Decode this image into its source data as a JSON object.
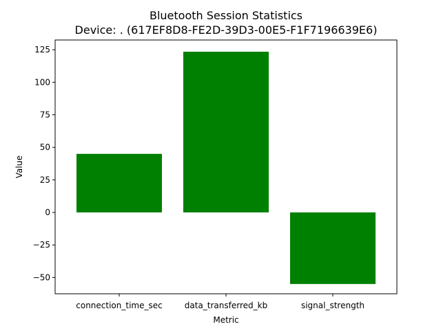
{
  "chart_data": {
    "type": "bar",
    "title": "Bluetooth Session Statistics",
    "subtitle": "Device: . (617EF8D8-FE2D-39D3-00E5-F1F7196639E6)",
    "xlabel": "Metric",
    "ylabel": "Value",
    "categories": [
      "connection_time_sec",
      "data_transferred_kb",
      "signal_strength"
    ],
    "values": [
      45,
      123.5,
      -55
    ],
    "ylim": [
      -62.5,
      132.5
    ],
    "yticks": [
      -50,
      -25,
      0,
      25,
      50,
      75,
      100,
      125
    ],
    "ytick_labels": [
      "−50",
      "−25",
      "0",
      "25",
      "50",
      "75",
      "100",
      "125"
    ],
    "bar_color": "#008000",
    "grid": false,
    "legend": "none"
  }
}
